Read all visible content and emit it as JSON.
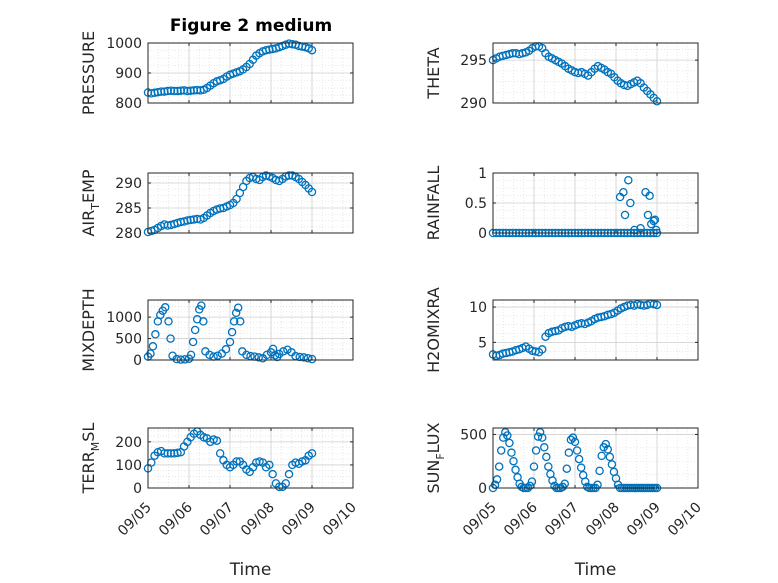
{
  "title": "Figure 2 medium",
  "colors": {
    "marker": "#0072BD",
    "grid": "#d0d0d0",
    "axis": "#262626"
  },
  "x_tick_labels": [
    "09/05",
    "09/06",
    "09/07",
    "09/08",
    "09/09",
    "09/10"
  ],
  "x_axis_label": "Time",
  "chart_data": [
    {
      "type": "scatter",
      "ylabel": "PRESSURE",
      "xlim": [
        0,
        5
      ],
      "ylim": [
        800,
        1000
      ],
      "ytick_labels": [
        "800",
        "900",
        "1000"
      ],
      "x": [
        0.0,
        0.08,
        0.16,
        0.24,
        0.32,
        0.4,
        0.48,
        0.56,
        0.64,
        0.72,
        0.8,
        0.88,
        0.96,
        1.04,
        1.12,
        1.2,
        1.28,
        1.36,
        1.44,
        1.52,
        1.6,
        1.68,
        1.76,
        1.84,
        1.92,
        2.0,
        2.08,
        2.16,
        2.24,
        2.32,
        2.4,
        2.48,
        2.56,
        2.64,
        2.72,
        2.8,
        2.88,
        2.96,
        3.04,
        3.12,
        3.2,
        3.28,
        3.36,
        3.44,
        3.52,
        3.6,
        3.68,
        3.76,
        3.84,
        3.92,
        4.0
      ],
      "y": [
        835,
        832,
        834,
        836,
        838,
        838,
        840,
        841,
        840,
        840,
        841,
        842,
        840,
        841,
        842,
        843,
        842,
        844,
        850,
        858,
        866,
        872,
        876,
        880,
        888,
        894,
        898,
        902,
        906,
        912,
        920,
        930,
        944,
        958,
        966,
        972,
        976,
        978,
        980,
        982,
        986,
        990,
        994,
        998,
        996,
        994,
        990,
        988,
        986,
        982,
        976
      ]
    },
    {
      "type": "scatter",
      "ylabel": "THETA",
      "xlim": [
        0,
        5
      ],
      "ylim": [
        290,
        297
      ],
      "ytick_labels": [
        "290",
        "295"
      ],
      "x": [
        0.0,
        0.08,
        0.16,
        0.24,
        0.32,
        0.4,
        0.48,
        0.56,
        0.64,
        0.72,
        0.8,
        0.88,
        0.96,
        1.04,
        1.12,
        1.2,
        1.28,
        1.36,
        1.44,
        1.52,
        1.6,
        1.68,
        1.76,
        1.84,
        1.92,
        2.0,
        2.08,
        2.16,
        2.24,
        2.32,
        2.4,
        2.48,
        2.56,
        2.64,
        2.72,
        2.8,
        2.88,
        2.96,
        3.04,
        3.12,
        3.2,
        3.28,
        3.36,
        3.44,
        3.52,
        3.6,
        3.68,
        3.76,
        3.84,
        3.92,
        4.0
      ],
      "y": [
        295.0,
        295.2,
        295.4,
        295.5,
        295.6,
        295.7,
        295.8,
        295.8,
        295.7,
        295.8,
        295.9,
        296.1,
        296.4,
        296.6,
        296.6,
        296.4,
        295.8,
        295.4,
        295.2,
        295.0,
        294.8,
        294.6,
        294.3,
        294.0,
        293.8,
        293.6,
        293.5,
        293.6,
        293.4,
        293.2,
        293.6,
        294.0,
        294.3,
        294.1,
        293.9,
        293.6,
        293.4,
        293.0,
        292.6,
        292.3,
        292.1,
        292.0,
        292.2,
        292.4,
        292.6,
        292.3,
        291.8,
        291.4,
        291.0,
        290.6,
        290.2
      ]
    },
    {
      "type": "scatter",
      "ylabel_main": "AIR",
      "ylabel_sub": "T",
      "ylabel_rest": "EMP",
      "xlim": [
        0,
        5
      ],
      "ylim": [
        280,
        292
      ],
      "ytick_labels": [
        "280",
        "285",
        "290"
      ],
      "x": [
        0.0,
        0.08,
        0.16,
        0.24,
        0.32,
        0.4,
        0.48,
        0.56,
        0.64,
        0.72,
        0.8,
        0.88,
        0.96,
        1.04,
        1.12,
        1.2,
        1.28,
        1.36,
        1.44,
        1.52,
        1.6,
        1.68,
        1.76,
        1.84,
        1.92,
        2.0,
        2.08,
        2.16,
        2.24,
        2.32,
        2.4,
        2.48,
        2.56,
        2.64,
        2.72,
        2.8,
        2.88,
        2.96,
        3.04,
        3.12,
        3.2,
        3.28,
        3.36,
        3.44,
        3.52,
        3.6,
        3.68,
        3.76,
        3.84,
        3.92,
        4.0
      ],
      "y": [
        280.2,
        280.4,
        280.6,
        281.0,
        281.4,
        281.7,
        281.5,
        281.6,
        281.8,
        282.0,
        282.2,
        282.3,
        282.5,
        282.6,
        282.7,
        282.8,
        282.7,
        283.0,
        283.5,
        284.0,
        284.4,
        284.7,
        284.9,
        285.0,
        285.3,
        285.6,
        286.0,
        286.8,
        288.0,
        289.2,
        290.4,
        291.0,
        291.2,
        290.8,
        290.6,
        291.2,
        291.5,
        291.3,
        291.0,
        290.6,
        290.4,
        290.8,
        291.3,
        291.5,
        291.5,
        291.2,
        290.8,
        290.2,
        289.6,
        288.9,
        288.2
      ]
    },
    {
      "type": "scatter",
      "ylabel": "RAINFALL",
      "xlim": [
        0,
        5
      ],
      "ylim": [
        0,
        1
      ],
      "ytick_labels": [
        "0",
        "0.5",
        "1"
      ],
      "x": [
        0.0,
        0.08,
        0.16,
        0.24,
        0.32,
        0.4,
        0.48,
        0.56,
        0.64,
        0.72,
        0.8,
        0.88,
        0.96,
        1.04,
        1.12,
        1.2,
        1.28,
        1.36,
        1.44,
        1.52,
        1.6,
        1.68,
        1.76,
        1.84,
        1.92,
        2.0,
        2.08,
        2.16,
        2.24,
        2.32,
        2.4,
        2.48,
        2.56,
        2.64,
        2.72,
        2.8,
        2.88,
        2.96,
        3.04,
        3.12,
        3.2,
        3.28,
        3.36,
        3.44,
        3.52,
        3.6,
        3.68,
        3.76,
        3.84,
        3.92,
        4.0,
        3.1,
        3.18,
        3.22,
        3.3,
        3.35,
        3.45,
        3.6,
        3.72,
        3.78,
        3.82,
        3.86,
        3.92,
        3.95,
        3.98
      ],
      "y": [
        0,
        0,
        0,
        0,
        0,
        0,
        0,
        0,
        0,
        0,
        0,
        0,
        0,
        0,
        0,
        0,
        0,
        0,
        0,
        0,
        0,
        0,
        0,
        0,
        0,
        0,
        0,
        0,
        0,
        0,
        0,
        0,
        0,
        0,
        0,
        0,
        0,
        0,
        0,
        0,
        0,
        0,
        0,
        0,
        0,
        0,
        0,
        0,
        0,
        0,
        0,
        0.6,
        0.68,
        0.3,
        0.88,
        0.5,
        0.05,
        0.08,
        0.68,
        0.3,
        0.62,
        0.15,
        0.2,
        0.22,
        0.05
      ]
    },
    {
      "type": "scatter",
      "ylabel": "MIXDEPTH",
      "xlim": [
        0,
        5
      ],
      "ylim": [
        0,
        1400
      ],
      "ytick_labels": [
        "0",
        "500",
        "1000"
      ],
      "x": [
        0.0,
        0.06,
        0.12,
        0.18,
        0.24,
        0.3,
        0.36,
        0.42,
        0.5,
        0.55,
        0.6,
        0.7,
        0.8,
        0.9,
        1.0,
        1.05,
        1.1,
        1.15,
        1.2,
        1.25,
        1.3,
        1.35,
        1.4,
        1.5,
        1.6,
        1.7,
        1.8,
        1.9,
        2.0,
        2.05,
        2.1,
        2.15,
        2.2,
        2.25,
        2.3,
        2.4,
        2.5,
        2.6,
        2.7,
        2.8,
        2.9,
        3.0,
        3.05,
        3.1,
        3.15,
        3.2,
        3.3,
        3.4,
        3.5,
        3.6,
        3.7,
        3.8,
        3.9,
        4.0
      ],
      "y": [
        80,
        150,
        320,
        600,
        900,
        1050,
        1150,
        1230,
        900,
        500,
        100,
        20,
        10,
        15,
        30,
        120,
        420,
        700,
        950,
        1180,
        1270,
        900,
        200,
        120,
        80,
        100,
        150,
        250,
        420,
        650,
        900,
        1100,
        1220,
        900,
        200,
        120,
        90,
        80,
        60,
        40,
        120,
        180,
        260,
        110,
        70,
        140,
        200,
        240,
        180,
        90,
        70,
        60,
        40,
        20
      ]
    },
    {
      "type": "scatter",
      "ylabel": "H2OMIXRA",
      "xlim": [
        0,
        5
      ],
      "ylim": [
        2.5,
        11
      ],
      "ytick_labels": [
        "5",
        "10"
      ],
      "x": [
        0.0,
        0.08,
        0.16,
        0.24,
        0.32,
        0.4,
        0.48,
        0.56,
        0.64,
        0.72,
        0.8,
        0.88,
        0.96,
        1.04,
        1.12,
        1.2,
        1.28,
        1.36,
        1.44,
        1.52,
        1.6,
        1.68,
        1.76,
        1.84,
        1.92,
        2.0,
        2.08,
        2.16,
        2.24,
        2.32,
        2.4,
        2.48,
        2.56,
        2.64,
        2.72,
        2.8,
        2.88,
        2.96,
        3.04,
        3.12,
        3.2,
        3.28,
        3.36,
        3.44,
        3.52,
        3.6,
        3.68,
        3.76,
        3.84,
        3.92,
        4.0
      ],
      "y": [
        3.3,
        3.1,
        3.2,
        3.4,
        3.5,
        3.6,
        3.7,
        3.9,
        4.0,
        4.2,
        4.4,
        4.1,
        3.8,
        3.7,
        3.6,
        4.0,
        5.8,
        6.3,
        6.5,
        6.6,
        6.7,
        7.0,
        7.2,
        7.3,
        7.2,
        7.4,
        7.6,
        7.7,
        7.6,
        7.8,
        8.0,
        8.3,
        8.5,
        8.6,
        8.7,
        8.9,
        9.0,
        9.2,
        9.5,
        9.8,
        10.0,
        10.2,
        10.3,
        10.2,
        10.4,
        10.3,
        10.2,
        10.3,
        10.5,
        10.4,
        10.3
      ]
    },
    {
      "type": "scatter",
      "ylabel_main": "TERR",
      "ylabel_sub": "M",
      "ylabel_rest": "SL",
      "xlim": [
        0,
        5
      ],
      "ylim": [
        0,
        260
      ],
      "ytick_labels": [
        "0",
        "100",
        "200"
      ],
      "x": [
        0.0,
        0.08,
        0.16,
        0.24,
        0.32,
        0.4,
        0.48,
        0.56,
        0.64,
        0.72,
        0.8,
        0.88,
        0.96,
        1.04,
        1.12,
        1.2,
        1.28,
        1.36,
        1.44,
        1.52,
        1.6,
        1.68,
        1.76,
        1.84,
        1.92,
        2.0,
        2.08,
        2.16,
        2.24,
        2.32,
        2.4,
        2.48,
        2.56,
        2.64,
        2.72,
        2.8,
        2.88,
        2.96,
        3.04,
        3.12,
        3.2,
        3.28,
        3.36,
        3.44,
        3.52,
        3.6,
        3.68,
        3.76,
        3.84,
        3.92,
        4.0
      ],
      "y": [
        85,
        110,
        140,
        155,
        160,
        150,
        150,
        150,
        150,
        152,
        155,
        180,
        200,
        220,
        235,
        245,
        230,
        220,
        215,
        200,
        210,
        205,
        150,
        120,
        100,
        90,
        100,
        115,
        115,
        100,
        80,
        70,
        90,
        110,
        115,
        110,
        90,
        100,
        60,
        20,
        5,
        5,
        20,
        60,
        100,
        110,
        105,
        115,
        120,
        140,
        150
      ]
    },
    {
      "type": "scatter",
      "ylabel_main": "SUN",
      "ylabel_sub": "F",
      "ylabel_rest": "LUX",
      "xlim": [
        0,
        5
      ],
      "ylim": [
        0,
        560
      ],
      "ytick_labels": [
        "0",
        "500"
      ],
      "x": [
        0.0,
        0.05,
        0.1,
        0.15,
        0.2,
        0.25,
        0.3,
        0.35,
        0.4,
        0.45,
        0.5,
        0.55,
        0.6,
        0.65,
        0.7,
        0.75,
        0.8,
        0.85,
        0.9,
        0.95,
        1.0,
        1.05,
        1.1,
        1.15,
        1.2,
        1.25,
        1.3,
        1.35,
        1.4,
        1.45,
        1.5,
        1.55,
        1.6,
        1.65,
        1.7,
        1.75,
        1.8,
        1.85,
        1.9,
        1.95,
        2.0,
        2.05,
        2.1,
        2.15,
        2.2,
        2.25,
        2.3,
        2.35,
        2.4,
        2.45,
        2.5,
        2.55,
        2.6,
        2.65,
        2.7,
        2.75,
        2.8,
        2.85,
        2.9,
        2.95,
        3.0,
        3.05,
        3.1,
        3.15,
        3.2,
        3.25,
        3.3,
        3.35,
        3.4,
        3.45,
        3.5,
        3.55,
        3.6,
        3.65,
        3.7,
        3.75,
        3.8,
        3.85,
        3.9,
        3.95,
        4.0
      ],
      "y": [
        0,
        30,
        80,
        200,
        350,
        470,
        520,
        490,
        420,
        330,
        250,
        170,
        100,
        40,
        10,
        0,
        0,
        0,
        20,
        60,
        200,
        350,
        480,
        520,
        470,
        380,
        290,
        200,
        130,
        70,
        20,
        0,
        0,
        0,
        10,
        40,
        180,
        330,
        450,
        470,
        430,
        350,
        270,
        190,
        120,
        60,
        10,
        0,
        0,
        0,
        0,
        30,
        160,
        300,
        380,
        410,
        360,
        290,
        220,
        150,
        90,
        30,
        0,
        0,
        0,
        0,
        0,
        0,
        0,
        0,
        0,
        0,
        0,
        0,
        0,
        0,
        0,
        0,
        0,
        0,
        0
      ]
    }
  ]
}
